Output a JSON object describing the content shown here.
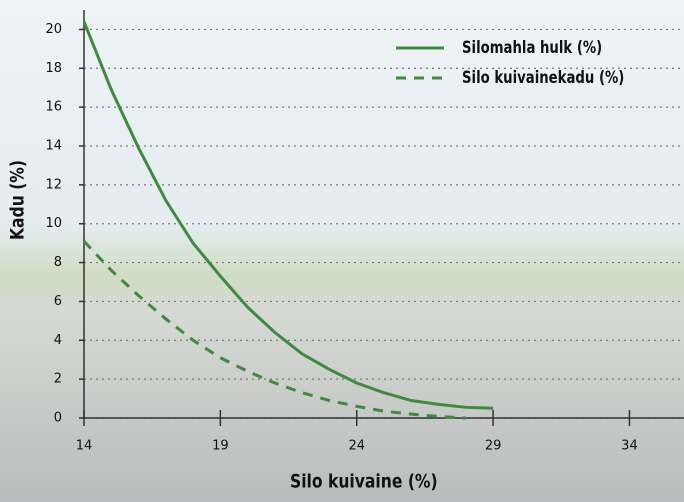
{
  "chart_data": {
    "type": "line",
    "x": [
      14,
      15,
      16,
      17,
      18,
      19,
      20,
      21,
      22,
      23,
      24,
      25,
      26,
      27,
      28,
      29
    ],
    "series": [
      {
        "name": "Silomahla hulk (%)",
        "color": "#3f8a3f",
        "dash": false,
        "values": [
          20.4,
          16.9,
          13.9,
          11.2,
          9.0,
          7.3,
          5.7,
          4.4,
          3.3,
          2.5,
          1.8,
          1.3,
          0.9,
          0.7,
          0.55,
          0.5
        ]
      },
      {
        "name": "Silo kuivainekadu (%)",
        "color": "#3f8a3f",
        "dash": true,
        "values": [
          9.1,
          7.6,
          6.3,
          5.1,
          4.0,
          3.1,
          2.4,
          1.8,
          1.3,
          0.9,
          0.6,
          0.35,
          0.2,
          0.08,
          0,
          null
        ]
      }
    ],
    "xlabel": "Silo kuivaine (%)",
    "ylabel": "Kadu (%)",
    "xlim": [
      14,
      36
    ],
    "ylim": [
      0,
      21
    ],
    "xticks": [
      14,
      19,
      24,
      29,
      34
    ],
    "yticks": [
      0,
      2,
      4,
      6,
      8,
      10,
      12,
      14,
      16,
      18,
      20
    ],
    "grid": true,
    "legend": "upper right"
  }
}
